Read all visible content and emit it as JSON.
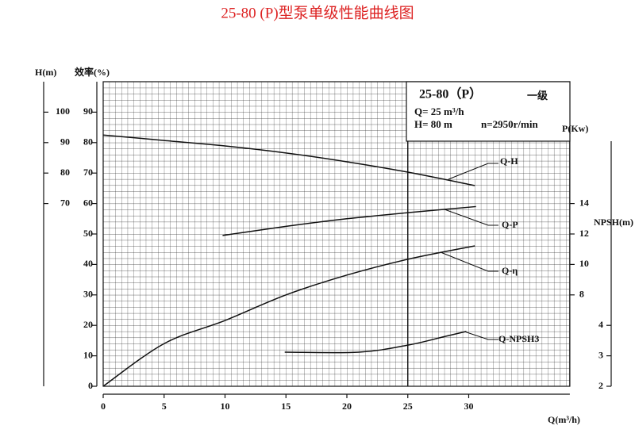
{
  "chart_data": {
    "type": "line",
    "title": "25-80 (P)型泵单级性能曲线图",
    "info": {
      "model": "25-80（P）",
      "stage": "一级",
      "flow": "Q= 25 m³/h",
      "head": "H= 80 m",
      "speed": "n=2950r/min"
    },
    "xlabel": "Q(m³/h)",
    "xlim": [
      0,
      38.3
    ],
    "xticks": [
      0,
      5,
      10,
      15,
      20,
      25,
      30
    ],
    "ylabel": "H(m)",
    "ylim": [
      10,
      110
    ],
    "yticks": [
      70,
      80,
      90,
      100
    ],
    "y2label": "效率(%)",
    "y2lim": [
      0,
      100
    ],
    "y2ticks": [
      0,
      10,
      20,
      30,
      40,
      50,
      60,
      70,
      80,
      90
    ],
    "y3label": "P(Kw)",
    "y3lim": [
      2,
      22
    ],
    "y3ticks": [
      8,
      10,
      12,
      14
    ],
    "y4label": "NPSH(m)",
    "y4lim": [
      2,
      12
    ],
    "y4ticks": [
      2,
      3,
      4
    ],
    "grid": true,
    "series": [
      {
        "name": "Q-H",
        "axis": "y",
        "color": "#111111",
        "x": [
          0,
          5,
          10,
          15,
          20,
          25,
          30.5
        ],
        "values": [
          92.5,
          90.7,
          88.9,
          86.6,
          83.7,
          80.3,
          75.9
        ]
      },
      {
        "name": "Q-P",
        "axis": "y3",
        "color": "#111111",
        "x": [
          9.8,
          15,
          20,
          25,
          30.6
        ],
        "values": [
          11.9,
          12.5,
          13.0,
          13.4,
          13.8
        ]
      },
      {
        "name": "Q-η",
        "axis": "y2",
        "color": "#111111",
        "x": [
          0,
          5,
          10,
          15,
          20,
          25,
          30.5
        ],
        "values": [
          0,
          14,
          21.6,
          30,
          36.5,
          41.7,
          46.1
        ]
      },
      {
        "name": "Q-NPSH3",
        "axis": "y4",
        "color": "#111111",
        "x": [
          14.9,
          21,
          25,
          28,
          29.8
        ],
        "values": [
          3.12,
          3.12,
          3.35,
          3.63,
          3.8
        ]
      }
    ]
  }
}
